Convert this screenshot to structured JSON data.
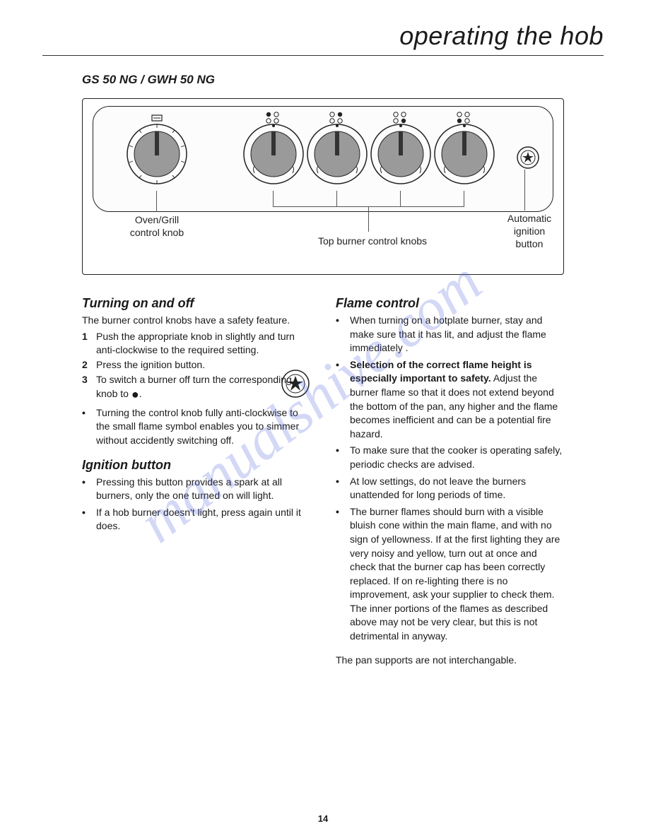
{
  "page": {
    "title": "operating the hob",
    "model": "GS 50 NG / GWH 50 NG",
    "number": "14",
    "watermark": "manualshive.com"
  },
  "diagram": {
    "label_oven": "Oven/Grill\ncontrol knob",
    "label_top": "Top burner control knobs",
    "label_ignition": "Automatic\nignition\nbutton",
    "colors": {
      "stroke": "#222222",
      "fill": "#fcfcfc",
      "knob_fill": "#9a9a9a"
    }
  },
  "left": {
    "sec1_title": "Turning on and off",
    "sec1_intro": "The burner control knobs have a safety feature.",
    "steps": [
      "Push the appropriate knob in slightly and turn anti-clockwise to the required setting.",
      "Press the ignition button.",
      "To switch a burner off turn the corresponding knob to "
    ],
    "sec1_bullets": [
      "Turning the control knob fully anti-clockwise to the small flame symbol enables you to simmer without accidently switching off."
    ],
    "sec2_title": "Ignition button",
    "sec2_bullets": [
      "Pressing this button provides a spark at all burners, only the one turned on will light.",
      "If a hob burner doesn't light, press again until it does."
    ]
  },
  "right": {
    "sec1_title": "Flame control",
    "bullets": [
      {
        "pre": "",
        "bold": "",
        "text": "When turning on a hotplate burner, stay and make sure that it has lit, and adjust the flame immediately ."
      },
      {
        "pre": "",
        "bold": "Selection of the correct flame height is especially important to safety.",
        "text": " Adjust the burner flame so that it does not extend beyond the bottom of the pan, any higher and the flame becomes inefficient and can be a potential fire hazard."
      },
      {
        "pre": "",
        "bold": "",
        "text": "To make sure that the cooker is operating safely, periodic checks are advised."
      },
      {
        "pre": "",
        "bold": "",
        "text": "At low settings, do not leave the burners unattended for long periods of time."
      },
      {
        "pre": "",
        "bold": "",
        "text": "The burner flames should burn with a visible bluish cone within the main flame, and with no sign of yellowness. If at the first lighting they are very noisy and yellow, turn out at once and check that the burner cap has been correctly replaced. If on re-lighting there is no improvement, ask your supplier to  check them. The inner portions of the flames as described above may not be very clear, but this is not detrimental in anyway."
      }
    ],
    "footer": "The pan supports are not interchangable."
  }
}
